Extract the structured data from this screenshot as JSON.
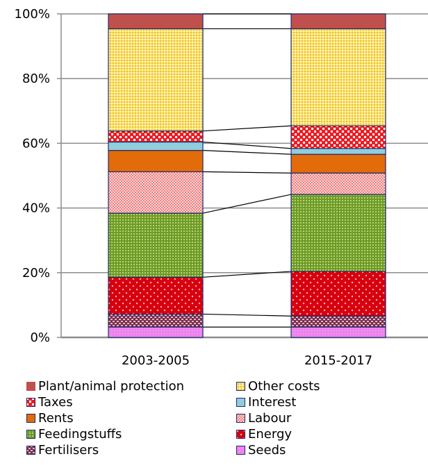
{
  "chart_data": {
    "type": "bar",
    "stacked": true,
    "percent": true,
    "categories": [
      "2003-2005",
      "2015-2017"
    ],
    "ylim": [
      0,
      100
    ],
    "yticks": [
      "0%",
      "20%",
      "40%",
      "60%",
      "80%",
      "100%"
    ],
    "ytick_values": [
      0,
      20,
      40,
      60,
      80,
      100
    ],
    "grid": true,
    "legend_position": "bottom",
    "series": [
      {
        "name": "Seeds",
        "key": "seeds",
        "values": [
          3.2,
          3.2
        ],
        "color": "#ee82ee"
      },
      {
        "name": "Fertilisers",
        "key": "fertilisers",
        "values": [
          4.0,
          3.4
        ],
        "color": "#7b2b4a"
      },
      {
        "name": "Energy",
        "key": "energy",
        "values": [
          11.4,
          13.8
        ],
        "color": "#d7000f"
      },
      {
        "name": "Feedingstuffs",
        "key": "feedingstuffs",
        "values": [
          19.8,
          23.8
        ],
        "color": "#6e9b24"
      },
      {
        "name": "Labour",
        "key": "labour",
        "values": [
          12.8,
          6.6
        ],
        "color": "#f19a9a"
      },
      {
        "name": "Rents",
        "key": "rents",
        "values": [
          6.6,
          5.8
        ],
        "color": "#e26b0a"
      },
      {
        "name": "Interest",
        "key": "interest",
        "values": [
          2.6,
          1.8
        ],
        "color": "#92cddc"
      },
      {
        "name": "Taxes",
        "key": "taxes",
        "values": [
          3.4,
          7.0
        ],
        "color": "#ee1d23"
      },
      {
        "name": "Other costs",
        "key": "other",
        "values": [
          31.6,
          30.0
        ],
        "color": "#fce16b"
      },
      {
        "name": "Plant/animal protection",
        "key": "protection",
        "values": [
          4.6,
          4.6
        ],
        "color": "#c0504d"
      }
    ]
  },
  "legend_order": [
    "protection",
    "other",
    "taxes",
    "interest",
    "rents",
    "labour",
    "feedingstuffs",
    "energy",
    "fertilisers",
    "seeds"
  ]
}
